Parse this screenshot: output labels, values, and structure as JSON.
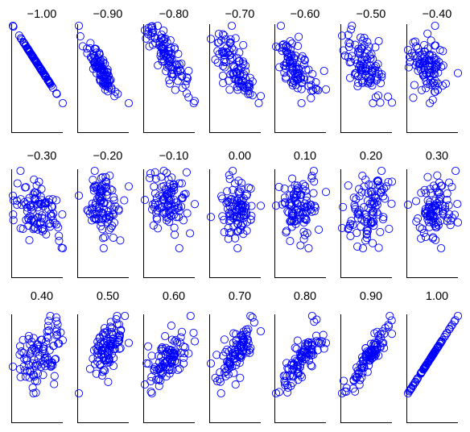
{
  "chart_data": {
    "type": "scatter",
    "layout": "small-multiples",
    "rows": 3,
    "columns": 7,
    "axes": "left and bottom lines only, no ticks or tick labels",
    "grid": false,
    "legend": "none",
    "marker": "open-circle",
    "marker_color": "#0000ff",
    "points_per_panel": 100,
    "panels": [
      {
        "title": "−1.00",
        "correlation": -1.0
      },
      {
        "title": "−0.90",
        "correlation": -0.9
      },
      {
        "title": "−0.80",
        "correlation": -0.8
      },
      {
        "title": "−0.70",
        "correlation": -0.7
      },
      {
        "title": "−0.60",
        "correlation": -0.6
      },
      {
        "title": "−0.50",
        "correlation": -0.5
      },
      {
        "title": "−0.40",
        "correlation": -0.4
      },
      {
        "title": "−0.30",
        "correlation": -0.3
      },
      {
        "title": "−0.20",
        "correlation": -0.2
      },
      {
        "title": "−0.10",
        "correlation": -0.1
      },
      {
        "title": "0.00",
        "correlation": 0.0
      },
      {
        "title": "0.10",
        "correlation": 0.1
      },
      {
        "title": "0.20",
        "correlation": 0.2
      },
      {
        "title": "0.30",
        "correlation": 0.3
      },
      {
        "title": "0.40",
        "correlation": 0.4
      },
      {
        "title": "0.50",
        "correlation": 0.5
      },
      {
        "title": "0.60",
        "correlation": 0.6
      },
      {
        "title": "0.70",
        "correlation": 0.7
      },
      {
        "title": "0.80",
        "correlation": 0.8
      },
      {
        "title": "0.90",
        "correlation": 0.9
      },
      {
        "title": "1.00",
        "correlation": 1.0
      }
    ]
  }
}
